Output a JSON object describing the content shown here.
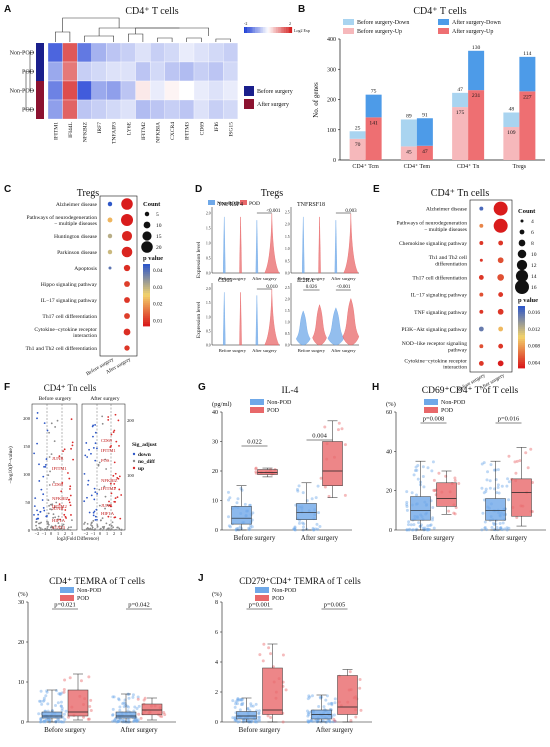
{
  "colors": {
    "nonpod_blue": "#6fa8e8",
    "pod_red": "#e8686a",
    "heat_low": "#1f3fd6",
    "heat_high": "#d42020",
    "before_down": "#a9d4f0",
    "after_down": "#4d9be8",
    "before_up": "#f6b8bb",
    "after_up": "#ee6f72"
  },
  "panels": {
    "A": {
      "letter": "A",
      "title": "CD4⁺ T cells",
      "legend_scale": "Log2 Exp",
      "legend_min": "-2",
      "legend_max": "2",
      "genes": [
        "IFITM1",
        "IFI44L",
        "NFKBIZ",
        "IRF7",
        "TNFAIP3",
        "LY6E",
        "IFITM2",
        "NFKBIA",
        "CXCR4",
        "IFITM3",
        "CD69",
        "IFI6",
        "ISG15"
      ],
      "rows": [
        "Non-POD",
        "POD",
        "Non-POD",
        "POD"
      ],
      "group_legend": [
        "Before surgery",
        "After surgery"
      ],
      "matrix": [
        [
          -1.6,
          1.5,
          -1.4,
          -0.8,
          -0.6,
          -0.5,
          -0.3,
          -0.5,
          -0.4,
          -0.2,
          -0.3,
          -0.4,
          -0.5
        ],
        [
          -0.9,
          1.2,
          -0.5,
          -0.4,
          -0.3,
          -0.3,
          -0.6,
          -0.4,
          -0.6,
          -0.7,
          -0.5,
          -0.6,
          -0.4
        ],
        [
          -1.3,
          1.6,
          -1.7,
          -0.9,
          -1.0,
          -0.6,
          0.2,
          -0.2,
          0.1,
          0.0,
          -0.2,
          -0.3,
          -0.2
        ],
        [
          -1.0,
          1.4,
          -0.6,
          -0.5,
          -0.4,
          -0.3,
          -0.7,
          -0.6,
          -0.5,
          -0.6,
          -0.3,
          -0.5,
          -0.4
        ]
      ]
    },
    "B": {
      "letter": "B",
      "title": "CD4⁺ T cells",
      "ylabel": "No. of genes",
      "ylim": [
        0,
        400
      ],
      "yticks": [
        "0",
        "100",
        "200",
        "300",
        "400"
      ],
      "legend": [
        "Before surgery-Down",
        "After surgery-Down",
        "Before surgery-Up",
        "After surgery-Up"
      ],
      "categories": [
        "CD4⁺ Tcm",
        "CD4⁺ Tem",
        "CD4⁺ Tn",
        "Tregs"
      ],
      "before_up": [
        70,
        45,
        175,
        109
      ],
      "before_down": [
        25,
        89,
        47,
        48
      ],
      "after_up": [
        141,
        47,
        231,
        227
      ],
      "after_down": [
        75,
        91,
        130,
        114
      ]
    },
    "C": {
      "letter": "C",
      "title": "Tregs",
      "terms": [
        "Alzheimer disease",
        "Pathways of neurodegeneration\n− multiple diseases",
        "Huntington disease",
        "Parkinson disease",
        "Apoptosis",
        "Hippo signaling pathway",
        "IL−17 signaling pathway",
        "Th17 cell differentiation",
        "Cytokine−cytokine receptor\ninteraction",
        "Th1 and Th2 cell differentiation"
      ],
      "groups": [
        "Before surgery",
        "After surgery"
      ],
      "count_title": "Count",
      "counts": [
        "5",
        "10",
        "15",
        "20"
      ],
      "p_title": "p value",
      "p_ticks": [
        "0.04",
        "0.03",
        "0.02",
        "0.01"
      ],
      "points": [
        {
          "g": 0,
          "t": 0,
          "c": 5,
          "p": 0.045
        },
        {
          "g": 1,
          "t": 0,
          "c": 20,
          "p": 0.002
        },
        {
          "g": 0,
          "t": 1,
          "c": 6,
          "p": 0.02
        },
        {
          "g": 1,
          "t": 1,
          "c": 21,
          "p": 0.002
        },
        {
          "g": 0,
          "t": 2,
          "c": 5,
          "p": 0.03
        },
        {
          "g": 1,
          "t": 2,
          "c": 17,
          "p": 0.003
        },
        {
          "g": 0,
          "t": 3,
          "c": 5,
          "p": 0.028
        },
        {
          "g": 1,
          "t": 3,
          "c": 18,
          "p": 0.003
        },
        {
          "g": 0,
          "t": 4,
          "c": 2,
          "p": 0.04
        },
        {
          "g": 1,
          "t": 4,
          "c": 9,
          "p": 0.004
        },
        {
          "g": 1,
          "t": 5,
          "c": 8,
          "p": 0.006
        },
        {
          "g": 1,
          "t": 6,
          "c": 8,
          "p": 0.005
        },
        {
          "g": 1,
          "t": 7,
          "c": 8,
          "p": 0.006
        },
        {
          "g": 1,
          "t": 8,
          "c": 10,
          "p": 0.004
        },
        {
          "g": 1,
          "t": 9,
          "c": 7,
          "p": 0.005
        }
      ]
    },
    "D": {
      "letter": "D",
      "title": "Tregs",
      "ylabel": "Expression level",
      "legend": [
        "Non-POD",
        "POD"
      ],
      "subplots": [
        {
          "gene": "TNFRSF4",
          "p": "<0.001",
          "yticks": [
            "0.0",
            "0.5",
            "1.0",
            "1.5",
            "2.0"
          ]
        },
        {
          "gene": "TNFRSF18",
          "p": "0.003",
          "yticks": [
            "0.0",
            "0.5",
            "1.0",
            "1.5",
            "2.0",
            "2.5"
          ]
        },
        {
          "gene": "CD69",
          "p": "0.010",
          "yticks": [
            "0.0",
            "0.5",
            "1.0",
            "1.5",
            "2.0"
          ]
        },
        {
          "gene": "IL2RA",
          "p1": "0.026",
          "p2": "<0.001",
          "yticks": [
            "0.0",
            "0.5",
            "1.0",
            "1.5",
            "2.0",
            "2.5"
          ]
        }
      ],
      "xlabels": [
        "Before surgery",
        "After surgery"
      ]
    },
    "E": {
      "letter": "E",
      "title": "CD4⁺ Tn cells",
      "terms": [
        "Alzheimer disease",
        "Pathways of neurodegeneration\n− multiple diseases",
        "Chemokine signaling pathway",
        "Th1 and Th2 cell\ndifferentiation",
        "Th17 cell differentiation",
        "IL−17 signaling pathway",
        "TNF signaling pathway",
        "PI3K−Akt signaling pathway",
        "NOD−like receptor signaling\npathway",
        "Cytokine−cytokine receptor\ninteraction"
      ],
      "groups": [
        "Before surgery",
        "After surgery"
      ],
      "count_title": "Count",
      "counts": [
        "4",
        "6",
        "8",
        "10",
        "12",
        "14",
        "16"
      ],
      "p_title": "p value",
      "p_ticks": [
        "0.016",
        "0.012",
        "0.008",
        "0.004"
      ],
      "points": [
        {
          "g": 0,
          "t": 0,
          "c": 5,
          "p": 0.015
        },
        {
          "g": 1,
          "t": 0,
          "c": 16,
          "p": 0.002
        },
        {
          "g": 0,
          "t": 1,
          "c": 5,
          "p": 0.006
        },
        {
          "g": 1,
          "t": 1,
          "c": 16,
          "p": 0.002
        },
        {
          "g": 0,
          "t": 2,
          "c": 5,
          "p": 0.003
        },
        {
          "g": 1,
          "t": 2,
          "c": 6,
          "p": 0.003
        },
        {
          "g": 0,
          "t": 3,
          "c": 4,
          "p": 0.003
        },
        {
          "g": 1,
          "t": 3,
          "c": 7,
          "p": 0.004
        },
        {
          "g": 0,
          "t": 4,
          "c": 6,
          "p": 0.003
        },
        {
          "g": 1,
          "t": 4,
          "c": 8,
          "p": 0.004
        },
        {
          "g": 0,
          "t": 5,
          "c": 5,
          "p": 0.004
        },
        {
          "g": 1,
          "t": 5,
          "c": 6,
          "p": 0.003
        },
        {
          "g": 0,
          "t": 6,
          "c": 5,
          "p": 0.003
        },
        {
          "g": 1,
          "t": 6,
          "c": 7,
          "p": 0.003
        },
        {
          "g": 0,
          "t": 7,
          "c": 6,
          "p": 0.014
        },
        {
          "g": 1,
          "t": 7,
          "c": 6,
          "p": 0.008
        },
        {
          "g": 0,
          "t": 8,
          "c": 5,
          "p": 0.004
        },
        {
          "g": 1,
          "t": 8,
          "c": 6,
          "p": 0.003
        },
        {
          "g": 0,
          "t": 9,
          "c": 6,
          "p": 0.003
        },
        {
          "g": 1,
          "t": 9,
          "c": 7,
          "p": 0.002
        }
      ]
    },
    "F": {
      "letter": "F",
      "title": "CD4⁺ Tn cells",
      "ylabel": "−log10(P−value)",
      "xlabel": "log2(Fold Difference)",
      "groups": [
        "Before surgery",
        "After surgery"
      ],
      "legend_title": "Sig_adjust",
      "legend": [
        "down",
        "no_diff",
        "up"
      ],
      "yticks_left": [
        "0",
        "50",
        "100",
        "150",
        "200"
      ],
      "yticks_right": [
        "100",
        "200"
      ],
      "genes_before": [
        "JUNB",
        "IFITM1",
        "CD69",
        "NFKBIZ",
        "IFITM2",
        "JUNB",
        "HIF1A",
        "STAT3"
      ],
      "genes_after": [
        "CD69",
        "IFITM1",
        "FOS",
        "NFKBIZ",
        "IFITM2",
        "JUNB",
        "HIF1A"
      ],
      "xticks": [
        "−2",
        "−1",
        "0",
        "1",
        "2",
        "3"
      ]
    },
    "G": {
      "letter": "G",
      "title": "IL-4",
      "unit": "(pg/ml)",
      "ylim": [
        0,
        40
      ],
      "yticks": [
        "0",
        "10",
        "20",
        "30",
        "40"
      ],
      "legend": [
        "Non-POD",
        "POD"
      ],
      "groups": [
        "Before surgery",
        "After surgery"
      ],
      "pvals": [
        "0.022",
        "0.004"
      ],
      "boxes": [
        {
          "grp": 0,
          "ser": 0,
          "min": 0,
          "q1": 2,
          "med": 4,
          "q3": 8,
          "max": 15
        },
        {
          "grp": 0,
          "ser": 1,
          "min": 18,
          "q1": 18.8,
          "med": 19.5,
          "q3": 20.5,
          "max": 21
        },
        {
          "grp": 1,
          "ser": 0,
          "min": 0,
          "q1": 3.5,
          "med": 6,
          "q3": 9,
          "max": 16
        },
        {
          "grp": 1,
          "ser": 1,
          "min": 11,
          "q1": 15,
          "med": 20,
          "q3": 30,
          "max": 37
        }
      ]
    },
    "H": {
      "letter": "H",
      "title": "CD69⁺CD4⁺ T of T cells",
      "unit": "(%)",
      "ylim": [
        0,
        60
      ],
      "yticks": [
        "0",
        "20",
        "40",
        "60"
      ],
      "legend": [
        "Non-POD",
        "POD"
      ],
      "groups": [
        "Before surgery",
        "After surgery"
      ],
      "pvals": [
        "p=0.008",
        "p=0.016"
      ],
      "boxes": [
        {
          "grp": 0,
          "ser": 0,
          "min": 0,
          "q1": 5,
          "med": 10,
          "q3": 17,
          "max": 35
        },
        {
          "grp": 0,
          "ser": 1,
          "min": 8,
          "q1": 12,
          "med": 16,
          "q3": 24,
          "max": 30
        },
        {
          "grp": 1,
          "ser": 0,
          "min": 0,
          "q1": 5,
          "med": 10,
          "q3": 16,
          "max": 35
        },
        {
          "grp": 1,
          "ser": 1,
          "min": 2,
          "q1": 7,
          "med": 19,
          "q3": 26,
          "max": 42
        }
      ]
    },
    "I": {
      "letter": "I",
      "title": "CD4⁺ TEMRA of T cells",
      "unit": "(%)",
      "ylim": [
        0,
        30
      ],
      "yticks": [
        "0",
        "10",
        "20",
        "30"
      ],
      "legend": [
        "Non-POD",
        "POD"
      ],
      "groups": [
        "Before surgery",
        "After surgery"
      ],
      "pvals": [
        "p=0.021",
        "p=0.042"
      ],
      "boxes": [
        {
          "grp": 0,
          "ser": 0,
          "min": 0,
          "q1": 1,
          "med": 1.5,
          "q3": 2.5,
          "max": 8
        },
        {
          "grp": 0,
          "ser": 1,
          "min": 0.5,
          "q1": 1.5,
          "med": 2.5,
          "q3": 8,
          "max": 12
        },
        {
          "grp": 1,
          "ser": 0,
          "min": 0,
          "q1": 1,
          "med": 1.5,
          "q3": 2.5,
          "max": 7
        },
        {
          "grp": 1,
          "ser": 1,
          "min": 0.5,
          "q1": 1.8,
          "med": 3,
          "q3": 4.5,
          "max": 6
        }
      ]
    },
    "J": {
      "letter": "J",
      "title": "CD279⁺CD4⁺ TEMRA of T cells",
      "unit": "(%)",
      "ylim": [
        0,
        8
      ],
      "yticks": [
        "0",
        "2",
        "4",
        "6",
        "8"
      ],
      "legend": [
        "Non-POD",
        "POD"
      ],
      "groups": [
        "Before surgery",
        "After surgery"
      ],
      "pvals": [
        "p=0.001",
        "p=0.005"
      ],
      "boxes": [
        {
          "grp": 0,
          "ser": 0,
          "min": 0,
          "q1": 0.2,
          "med": 0.4,
          "q3": 0.7,
          "max": 1.6
        },
        {
          "grp": 0,
          "ser": 1,
          "min": 0,
          "q1": 0.5,
          "med": 0.8,
          "q3": 3.6,
          "max": 5.2
        },
        {
          "grp": 1,
          "ser": 0,
          "min": 0,
          "q1": 0.2,
          "med": 0.5,
          "q3": 0.8,
          "max": 1.8
        },
        {
          "grp": 1,
          "ser": 1,
          "min": 0,
          "q1": 0.5,
          "med": 1,
          "q3": 3.1,
          "max": 3.5
        }
      ]
    }
  }
}
